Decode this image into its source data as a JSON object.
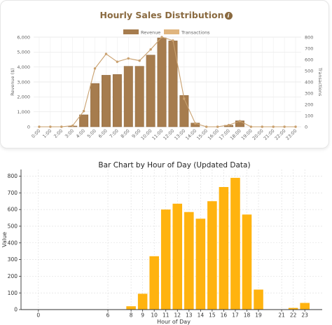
{
  "chart_data": [
    {
      "type": "bar+line",
      "title": "Hourly Sales Distribution",
      "title_icon": "info-icon",
      "legend": [
        "Revenue",
        "Transactions"
      ],
      "legend_position": "top",
      "ylabel": "Revenue ($)",
      "y2label": "Transactions",
      "ylim": [
        0,
        6000
      ],
      "y2lim": [
        0,
        800
      ],
      "yticks": [
        "0",
        "1,000",
        "2,000",
        "3,000",
        "4,000",
        "5,000",
        "6,000"
      ],
      "y2ticks": [
        "0",
        "100",
        "200",
        "300",
        "400",
        "500",
        "600",
        "700",
        "800"
      ],
      "categories": [
        "0:00",
        "1:00",
        "2:00",
        "3:00",
        "4:00",
        "5:00",
        "6:00",
        "7:00",
        "8:00",
        "9:00",
        "10:00",
        "11:00",
        "12:00",
        "13:00",
        "14:00",
        "15:00",
        "16:00",
        "17:00",
        "18:00",
        "19:00",
        "20:00",
        "21:00",
        "22:00",
        "23:00"
      ],
      "series": [
        {
          "name": "Revenue",
          "type": "bar",
          "color": "#a67c4e",
          "values": [
            0,
            0,
            0,
            50,
            800,
            2900,
            3450,
            3500,
            4050,
            4050,
            4800,
            5950,
            5750,
            2100,
            250,
            0,
            0,
            100,
            400,
            0,
            0,
            0,
            0,
            0
          ]
        },
        {
          "name": "Transactions",
          "type": "line",
          "color": "#c9a06e",
          "values": [
            0,
            0,
            0,
            10,
            140,
            520,
            650,
            580,
            610,
            590,
            690,
            800,
            770,
            250,
            30,
            0,
            0,
            15,
            50,
            0,
            0,
            0,
            0,
            0
          ]
        }
      ],
      "grid": true
    },
    {
      "type": "bar",
      "title": "Bar Chart by Hour of Day (Updated Data)",
      "xlabel": "Hour of Day",
      "ylabel": "Value",
      "ylim": [
        0,
        840
      ],
      "yticks": [
        "0",
        "100",
        "200",
        "300",
        "400",
        "500",
        "600",
        "700",
        "800"
      ],
      "xlim": [
        -1.5,
        24.5
      ],
      "xticks": [
        "0",
        "6",
        "8",
        "9",
        "10",
        "11",
        "12",
        "13",
        "14",
        "15",
        "16",
        "17",
        "18",
        "19",
        "21",
        "22",
        "23"
      ],
      "color": "#ffb30f",
      "x": [
        8,
        9,
        10,
        11,
        12,
        13,
        14,
        15,
        16,
        17,
        18,
        19,
        22,
        23
      ],
      "values": [
        20,
        95,
        320,
        600,
        635,
        585,
        545,
        650,
        735,
        790,
        570,
        120,
        10,
        40
      ],
      "grid": true
    }
  ]
}
